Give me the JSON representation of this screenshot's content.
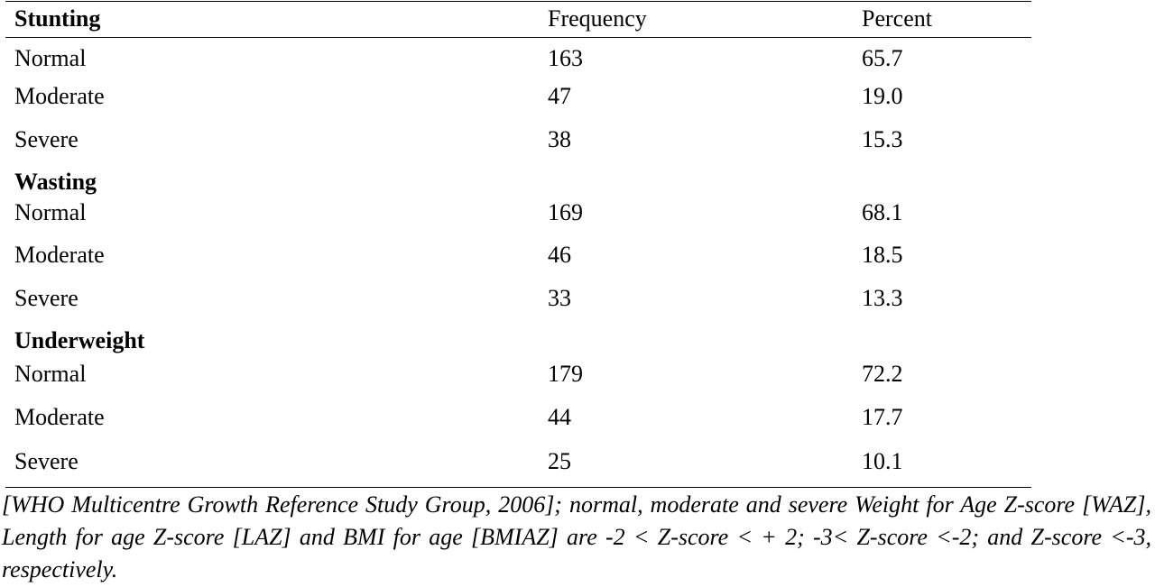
{
  "table": {
    "header": {
      "col1": "Stunting",
      "col2": "Frequency",
      "col3": "Percent"
    },
    "sections": [
      {
        "title": "Stunting",
        "rows": [
          {
            "label": "Normal",
            "frequency": "163",
            "percent": "65.7"
          },
          {
            "label": "Moderate",
            "frequency": "47",
            "percent": "19.0"
          },
          {
            "label": "Severe",
            "frequency": "38",
            "percent": "15.3"
          }
        ]
      },
      {
        "title": "Wasting",
        "rows": [
          {
            "label": "Normal",
            "frequency": "169",
            "percent": "68.1"
          },
          {
            "label": "Moderate",
            "frequency": "46",
            "percent": "18.5"
          },
          {
            "label": "Severe",
            "frequency": "33",
            "percent": "13.3"
          }
        ]
      },
      {
        "title": "Underweight",
        "rows": [
          {
            "label": "Normal",
            "frequency": "179",
            "percent": "72.2"
          },
          {
            "label": "Moderate",
            "frequency": "44",
            "percent": "17.7"
          },
          {
            "label": "Severe",
            "frequency": "25",
            "percent": "10.1"
          }
        ]
      }
    ]
  },
  "footnote": "[WHO Multicentre Growth Reference Study Group, 2006]; normal, moderate and severe Weight for Age Z-score [WAZ], Length for age Z-score [LAZ] and BMI for age [BMIAZ] are -2 < Z-score < + 2; -3< Z-score <-2; and Z-score <-3, respectively."
}
